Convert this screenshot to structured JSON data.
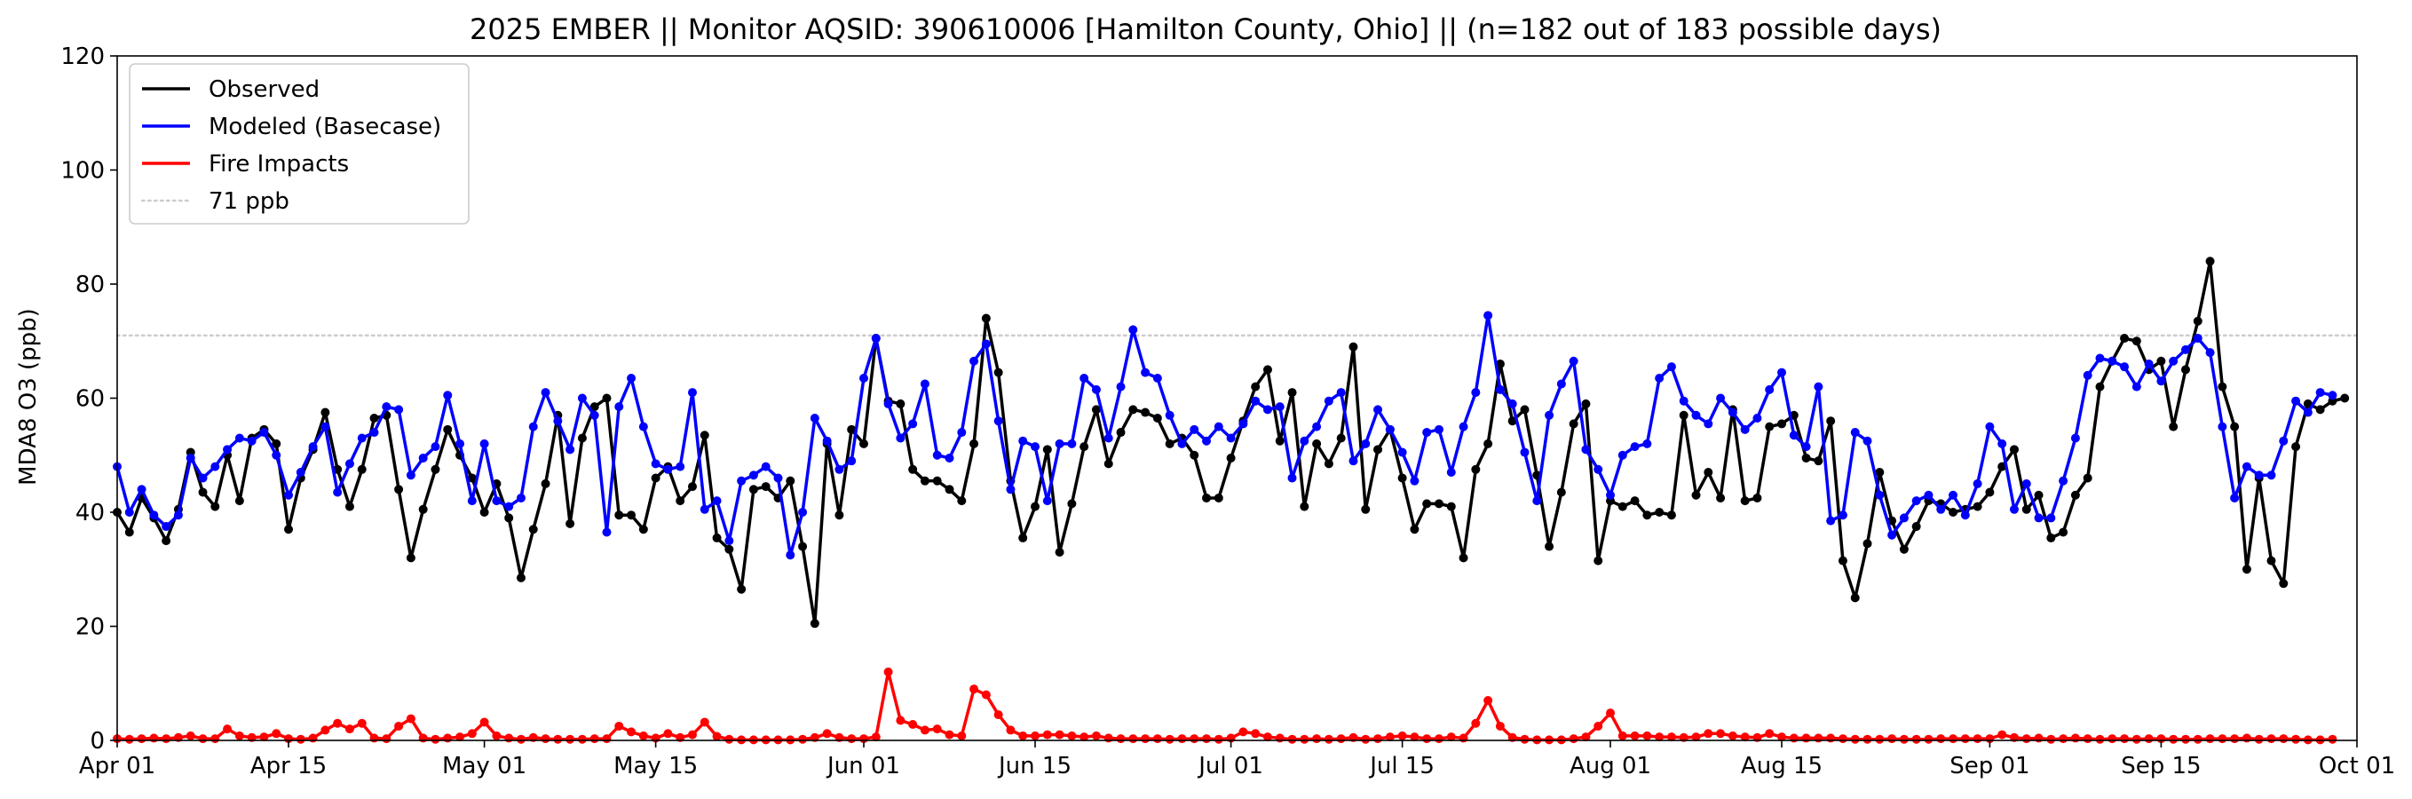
{
  "chart_data": {
    "type": "line",
    "title": "2025 EMBER || Monitor AQSID: 390610006 [Hamilton County, Ohio] || (n=182 out of 183 possible days)",
    "xlabel": "",
    "ylabel": "MDA8 O3 (ppb)",
    "ylim": [
      0,
      120
    ],
    "yticks": [
      0,
      20,
      40,
      60,
      80,
      100,
      120
    ],
    "xlim": [
      "2025-04-01",
      "2025-10-01"
    ],
    "xticks": [
      {
        "date": "2025-04-01",
        "label": "Apr 01"
      },
      {
        "date": "2025-04-15",
        "label": "Apr 15"
      },
      {
        "date": "2025-05-01",
        "label": "May 01"
      },
      {
        "date": "2025-05-15",
        "label": "May 15"
      },
      {
        "date": "2025-06-01",
        "label": "Jun 01"
      },
      {
        "date": "2025-06-15",
        "label": "Jun 15"
      },
      {
        "date": "2025-07-01",
        "label": "Jul 01"
      },
      {
        "date": "2025-07-15",
        "label": "Jul 15"
      },
      {
        "date": "2025-08-01",
        "label": "Aug 01"
      },
      {
        "date": "2025-08-15",
        "label": "Aug 15"
      },
      {
        "date": "2025-09-01",
        "label": "Sep 01"
      },
      {
        "date": "2025-09-15",
        "label": "Sep 15"
      },
      {
        "date": "2025-10-01",
        "label": "Oct 01"
      }
    ],
    "grid": false,
    "legend_position": "top-left",
    "threshold": {
      "name": "71 ppb",
      "value": 71,
      "color": "#cccccc",
      "style": "dotted"
    },
    "series": [
      {
        "name": "Observed",
        "color": "#000000",
        "start_date": "2025-04-01",
        "values": [
          40,
          36.5,
          42.5,
          39,
          35,
          40.5,
          50.5,
          43.5,
          41,
          50,
          42,
          53,
          54.5,
          52,
          37,
          46,
          51,
          57.5,
          47.5,
          41,
          47.5,
          56.5,
          57,
          44,
          32,
          40.5,
          47.5,
          54.5,
          50,
          46,
          40,
          45,
          39,
          28.5,
          37,
          45,
          57,
          38,
          53,
          58.5,
          60,
          39.5,
          39.5,
          37,
          46,
          48,
          42,
          44.5,
          53.5,
          35.5,
          33.5,
          26.5,
          44,
          44.5,
          42.5,
          45.5,
          34,
          20.5,
          52,
          39.5,
          54.5,
          52,
          70.5,
          59.5,
          59,
          47.5,
          45.5,
          45.5,
          44,
          42,
          52,
          74,
          64.5,
          45.5,
          35.5,
          41,
          51,
          33,
          41.5,
          51.5,
          58,
          48.5,
          54,
          58,
          57.5,
          56.5,
          52,
          53,
          50,
          42.5,
          42.5,
          49.5,
          56,
          62,
          65,
          52.5,
          61,
          41,
          52,
          48.5,
          53,
          69,
          40.5,
          51,
          54.5,
          46,
          37,
          41.5,
          41.5,
          41,
          32,
          47.5,
          52,
          66,
          56,
          58,
          46.5,
          34,
          43.5,
          55.5,
          59,
          31.5,
          42,
          41,
          42,
          39.5,
          40,
          39.5,
          57,
          43,
          47,
          42.5,
          58,
          42,
          42.5,
          55,
          55.5,
          57,
          49.5,
          49,
          56,
          31.5,
          25,
          34.5,
          47,
          38.5,
          33.5,
          37.5,
          42,
          41.5,
          40,
          40.5,
          41,
          43.5,
          48,
          51,
          40.5,
          43,
          35.5,
          36.5,
          43,
          46,
          62,
          66.5,
          70.5,
          70,
          65,
          66.5,
          55,
          65,
          73.5,
          84,
          62,
          55,
          30,
          46,
          31.5,
          27.5,
          51.5,
          59,
          58,
          59.5,
          60
        ]
      },
      {
        "name": "Modeled (Basecase)",
        "color": "#0000ff",
        "start_date": "2025-04-01",
        "values": [
          48,
          40,
          44,
          39.5,
          37.5,
          39.5,
          49.5,
          46,
          48,
          51,
          53,
          52.5,
          54,
          50,
          43,
          47,
          51.5,
          55,
          43.5,
          48.5,
          53,
          54,
          58.5,
          58,
          46.5,
          49.5,
          51.5,
          60.5,
          52,
          42,
          52,
          42,
          41,
          42.5,
          55,
          61,
          56,
          51,
          60,
          57,
          36.5,
          58.5,
          63.5,
          55,
          48.5,
          47.5,
          48,
          61,
          40.5,
          42,
          35,
          45.5,
          46.5,
          48,
          46,
          32.5,
          40,
          56.5,
          52.5,
          47.5,
          49,
          63.5,
          70.5,
          59,
          53,
          55.5,
          62.5,
          50,
          49.5,
          54,
          66.5,
          69.5,
          56,
          44,
          52.5,
          51.5,
          42,
          52,
          52,
          63.5,
          61.5,
          53,
          62,
          72,
          64.5,
          63.5,
          57,
          52,
          54.5,
          52.5,
          55,
          53,
          55.5,
          59.5,
          58,
          58.5,
          46,
          52.5,
          55,
          59.5,
          61,
          49,
          52,
          58,
          54.5,
          50.5,
          45.5,
          54,
          54.5,
          47,
          55,
          61,
          74.5,
          61.5,
          59,
          50.5,
          42,
          57,
          62.5,
          66.5,
          51,
          47.5,
          43,
          50,
          51.5,
          52,
          63.5,
          65.5,
          59.5,
          57,
          55.5,
          60,
          57.5,
          54.5,
          56.5,
          61.5,
          64.5,
          53.5,
          51.5,
          62,
          38.5,
          39.5,
          54,
          52.5,
          43,
          36,
          39,
          42,
          43,
          40.5,
          43,
          39.5,
          45,
          55,
          52,
          40.5,
          45,
          39,
          39,
          45.5,
          53,
          64,
          67,
          66.5,
          65.5,
          62,
          66,
          63,
          66.5,
          68.5,
          70.5,
          68,
          55,
          42.5,
          48,
          46.5,
          46.5,
          52.5,
          59.5,
          57.5,
          61,
          60.5
        ]
      },
      {
        "name": "Fire Impacts",
        "color": "#ff0000",
        "start_date": "2025-04-01",
        "values": [
          0.3,
          0.2,
          0.3,
          0.4,
          0.3,
          0.5,
          0.8,
          0.3,
          0.3,
          2,
          0.8,
          0.5,
          0.6,
          1.2,
          0.3,
          0.2,
          0.4,
          1.8,
          3,
          2,
          3,
          0.4,
          0.3,
          2.5,
          3.8,
          0.4,
          0.2,
          0.4,
          0.6,
          1.2,
          3.2,
          0.8,
          0.4,
          0.2,
          0.5,
          0.3,
          0.2,
          0.2,
          0.2,
          0.3,
          0.3,
          2.5,
          1.5,
          0.8,
          0.4,
          1.2,
          0.5,
          1,
          3.2,
          0.7,
          0.2,
          0.1,
          0.1,
          0.1,
          0.1,
          0.1,
          0.2,
          0.5,
          1.2,
          0.5,
          0.3,
          0.3,
          0.6,
          12,
          3.5,
          2.8,
          1.8,
          2,
          1,
          0.8,
          9,
          8,
          4.5,
          1.8,
          0.8,
          0.8,
          1,
          1,
          0.8,
          0.6,
          0.8,
          0.4,
          0.3,
          0.3,
          0.3,
          0.3,
          0.2,
          0.3,
          0.3,
          0.3,
          0.2,
          0.4,
          1.5,
          1.2,
          0.6,
          0.4,
          0.2,
          0.2,
          0.3,
          0.2,
          0.3,
          0.5,
          0.2,
          0.3,
          0.6,
          0.8,
          0.6,
          0.3,
          0.3,
          0.6,
          0.4,
          3,
          7,
          2.5,
          0.5,
          0.2,
          0.1,
          0.1,
          0.1,
          0.3,
          0.6,
          2.5,
          4.8,
          0.8,
          0.8,
          0.8,
          0.6,
          0.6,
          0.5,
          0.6,
          1.2,
          1.2,
          0.8,
          0.6,
          0.5,
          1.2,
          0.6,
          0.4,
          0.4,
          0.4,
          0.4,
          0.3,
          0.2,
          0.2,
          0.2,
          0.3,
          0.2,
          0.2,
          0.2,
          0.3,
          0.3,
          0.3,
          0.3,
          0.3,
          1,
          0.5,
          0.3,
          0.4,
          0.2,
          0.3,
          0.4,
          0.3,
          0.2,
          0.3,
          0.3,
          0.2,
          0.3,
          0.3,
          0.2,
          0.2,
          0.2,
          0.3,
          0.3,
          0.3,
          0.4,
          0.2,
          0.3,
          0.3,
          0.2,
          0.1,
          0.1,
          0.2
        ]
      }
    ]
  }
}
